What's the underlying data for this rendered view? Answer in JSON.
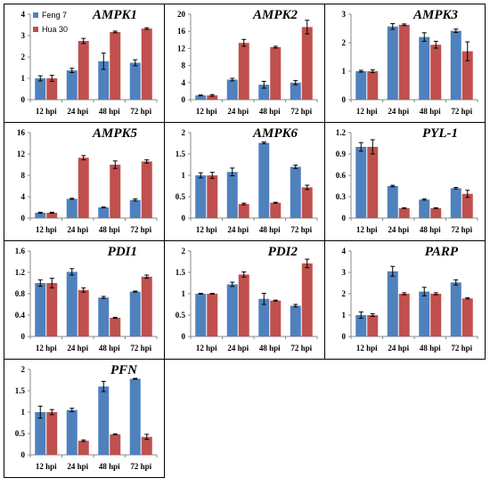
{
  "colors": {
    "feng7": "#4f81bd",
    "hua30": "#c0504d"
  },
  "legend": {
    "position": "top-left",
    "items": [
      "Feng 7",
      "Hua 30"
    ]
  },
  "chart_data": [
    {
      "type": "bar",
      "title": "AMPK1",
      "categories": [
        "12 hpi",
        "24 hpi",
        "48 hpi",
        "72 hpi"
      ],
      "series": [
        {
          "name": "Feng 7",
          "values": [
            1.0,
            1.37,
            1.8,
            1.73
          ],
          "errors": [
            0.12,
            0.1,
            0.38,
            0.14
          ]
        },
        {
          "name": "Hua 30",
          "values": [
            1.0,
            2.75,
            3.17,
            3.33
          ],
          "errors": [
            0.14,
            0.12,
            0.04,
            0.04
          ]
        }
      ],
      "ylim": [
        0,
        4
      ],
      "yticks": [
        0,
        1,
        2,
        3,
        4
      ],
      "legend": true
    },
    {
      "type": "bar",
      "title": "AMPK2",
      "categories": [
        "12 hpi",
        "24 hpi",
        "48 hpi",
        "72 hpi"
      ],
      "series": [
        {
          "name": "Feng 7",
          "values": [
            1.0,
            4.7,
            3.5,
            4.0
          ],
          "errors": [
            0.1,
            0.3,
            0.8,
            0.5
          ]
        },
        {
          "name": "Hua 30",
          "values": [
            1.0,
            13.3,
            12.3,
            17.0
          ],
          "errors": [
            0.2,
            0.8,
            0.2,
            1.6
          ]
        }
      ],
      "ylim": [
        0,
        20
      ],
      "yticks": [
        0,
        4,
        8,
        12,
        16,
        20
      ]
    },
    {
      "type": "bar",
      "title": "AMPK3",
      "categories": [
        "12 hpi",
        "24 hpi",
        "48 hpi",
        "72 hpi"
      ],
      "series": [
        {
          "name": "Feng 7",
          "values": [
            1.0,
            2.57,
            2.2,
            2.42
          ],
          "errors": [
            0.03,
            0.1,
            0.15,
            0.06
          ]
        },
        {
          "name": "Hua 30",
          "values": [
            1.0,
            2.63,
            1.93,
            1.7
          ],
          "errors": [
            0.05,
            0.03,
            0.12,
            0.33
          ]
        }
      ],
      "ylim": [
        0,
        3
      ],
      "yticks": [
        0,
        1,
        2,
        3
      ]
    },
    {
      "type": "bar",
      "title": "AMPK5",
      "categories": [
        "12 hpi",
        "24 hpi",
        "48 hpi",
        "72 hpi"
      ],
      "series": [
        {
          "name": "Feng 7",
          "values": [
            1.0,
            3.6,
            2.0,
            3.4
          ],
          "errors": [
            0.1,
            0.1,
            0.1,
            0.2
          ]
        },
        {
          "name": "Hua 30",
          "values": [
            1.0,
            11.3,
            10.0,
            10.6
          ],
          "errors": [
            0.1,
            0.4,
            0.7,
            0.3
          ]
        }
      ],
      "ylim": [
        0,
        16
      ],
      "yticks": [
        0,
        4,
        8,
        12,
        16
      ]
    },
    {
      "type": "bar",
      "title": "AMPK6",
      "categories": [
        "12 hpi",
        "24 hpi",
        "48 hpi",
        "72 hpi"
      ],
      "series": [
        {
          "name": "Feng 7",
          "values": [
            1.0,
            1.08,
            1.76,
            1.2
          ],
          "errors": [
            0.06,
            0.09,
            0.02,
            0.04
          ]
        },
        {
          "name": "Hua 30",
          "values": [
            1.0,
            0.33,
            0.36,
            0.72
          ],
          "errors": [
            0.07,
            0.02,
            0.01,
            0.05
          ]
        }
      ],
      "ylim": [
        0,
        2
      ],
      "yticks": [
        0,
        0.5,
        1,
        1.5,
        2
      ]
    },
    {
      "type": "bar",
      "title": "PYL-1",
      "categories": [
        "12 hpi",
        "24 hpi",
        "48 hpi",
        "72 hpi"
      ],
      "series": [
        {
          "name": "Feng 7",
          "values": [
            1.0,
            0.45,
            0.26,
            0.42
          ],
          "errors": [
            0.06,
            0.01,
            0.01,
            0.01
          ]
        },
        {
          "name": "Hua 30",
          "values": [
            1.0,
            0.14,
            0.14,
            0.34
          ],
          "errors": [
            0.1,
            0.005,
            0.005,
            0.05
          ]
        }
      ],
      "ylim": [
        0,
        1.2
      ],
      "yticks": [
        0,
        0.3,
        0.6,
        0.9,
        1.2
      ]
    },
    {
      "type": "bar",
      "title": "PDI1",
      "categories": [
        "12 hpi",
        "24 hpi",
        "48 hpi",
        "72 hpi"
      ],
      "series": [
        {
          "name": "Feng 7",
          "values": [
            1.0,
            1.21,
            0.73,
            0.84
          ],
          "errors": [
            0.06,
            0.06,
            0.02,
            0.01
          ]
        },
        {
          "name": "Hua 30",
          "values": [
            1.0,
            0.87,
            0.35,
            1.12
          ],
          "errors": [
            0.09,
            0.04,
            0.01,
            0.03
          ]
        }
      ],
      "ylim": [
        0,
        1.6
      ],
      "yticks": [
        0,
        0.4,
        0.8,
        1.2,
        1.6
      ]
    },
    {
      "type": "bar",
      "title": "PDI2",
      "categories": [
        "12 hpi",
        "24 hpi",
        "48 hpi",
        "72 hpi"
      ],
      "series": [
        {
          "name": "Feng 7",
          "values": [
            1.0,
            1.22,
            0.88,
            0.72
          ],
          "errors": [
            0.01,
            0.05,
            0.13,
            0.03
          ]
        },
        {
          "name": "Hua 30",
          "values": [
            1.0,
            1.45,
            0.84,
            1.71
          ],
          "errors": [
            0.01,
            0.06,
            0.01,
            0.1
          ]
        }
      ],
      "ylim": [
        0,
        2
      ],
      "yticks": [
        0,
        0.5,
        1,
        1.5,
        2
      ]
    },
    {
      "type": "bar",
      "title": "PARP",
      "categories": [
        "12 hpi",
        "24 hpi",
        "48 hpi",
        "72 hpi"
      ],
      "series": [
        {
          "name": "Feng 7",
          "values": [
            1.0,
            3.05,
            2.1,
            2.53
          ],
          "errors": [
            0.15,
            0.23,
            0.2,
            0.12
          ]
        },
        {
          "name": "Hua 30",
          "values": [
            1.0,
            2.0,
            2.0,
            1.78
          ],
          "errors": [
            0.06,
            0.05,
            0.05,
            0.03
          ]
        }
      ],
      "ylim": [
        0,
        4
      ],
      "yticks": [
        0,
        1,
        2,
        3,
        4
      ]
    },
    {
      "type": "bar",
      "title": "PFN",
      "categories": [
        "12 hpi",
        "24 hpi",
        "48 hpi",
        "72 hpi"
      ],
      "series": [
        {
          "name": "Feng 7",
          "values": [
            1.0,
            1.05,
            1.6,
            1.78
          ],
          "errors": [
            0.14,
            0.04,
            0.12,
            0.01
          ]
        },
        {
          "name": "Hua 30",
          "values": [
            1.0,
            0.33,
            0.48,
            0.42
          ],
          "errors": [
            0.06,
            0.02,
            0.01,
            0.06
          ]
        }
      ],
      "ylim": [
        0,
        2
      ],
      "yticks": [
        0,
        0.5,
        1,
        1.5,
        2
      ]
    }
  ]
}
